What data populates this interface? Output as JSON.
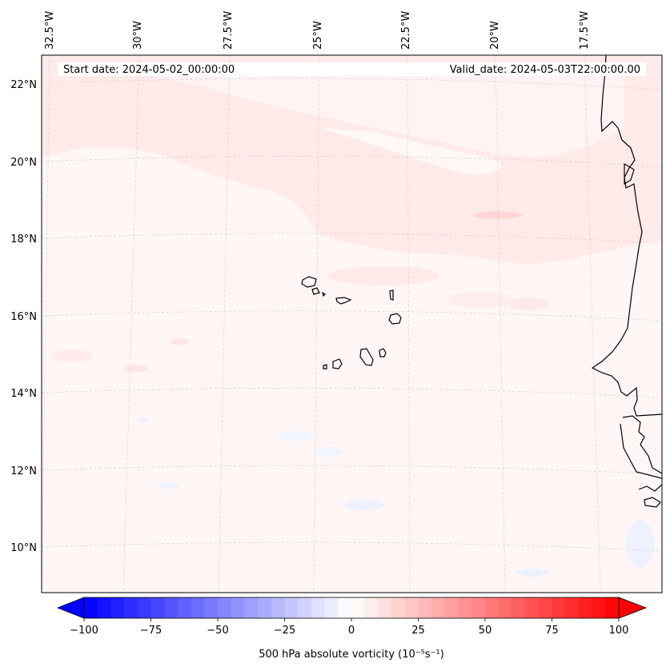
{
  "map": {
    "start_label": "Start date: 2024-05-02_00:00:00",
    "valid_label": "Valid_date: 2024-05-03T22:00:00.00",
    "lon_labels": [
      "32.5°W",
      "30°W",
      "27.5°W",
      "25°W",
      "22.5°W",
      "20°W",
      "17.5°W"
    ],
    "lat_labels": [
      "22°N",
      "20°N",
      "18°N",
      "16°N",
      "14°N",
      "12°N",
      "10°N"
    ]
  },
  "colorbar": {
    "label": "500 hPa absolute vorticity (10⁻⁵s⁻¹)",
    "ticks": [
      "−100",
      "−75",
      "−50",
      "−25",
      "0",
      "25",
      "50",
      "75",
      "100"
    ],
    "min": -100,
    "max": 100,
    "step": 5,
    "colors": {
      "low": "#0000ff",
      "mid": "#ffffff",
      "high": "#ff0000"
    }
  }
}
